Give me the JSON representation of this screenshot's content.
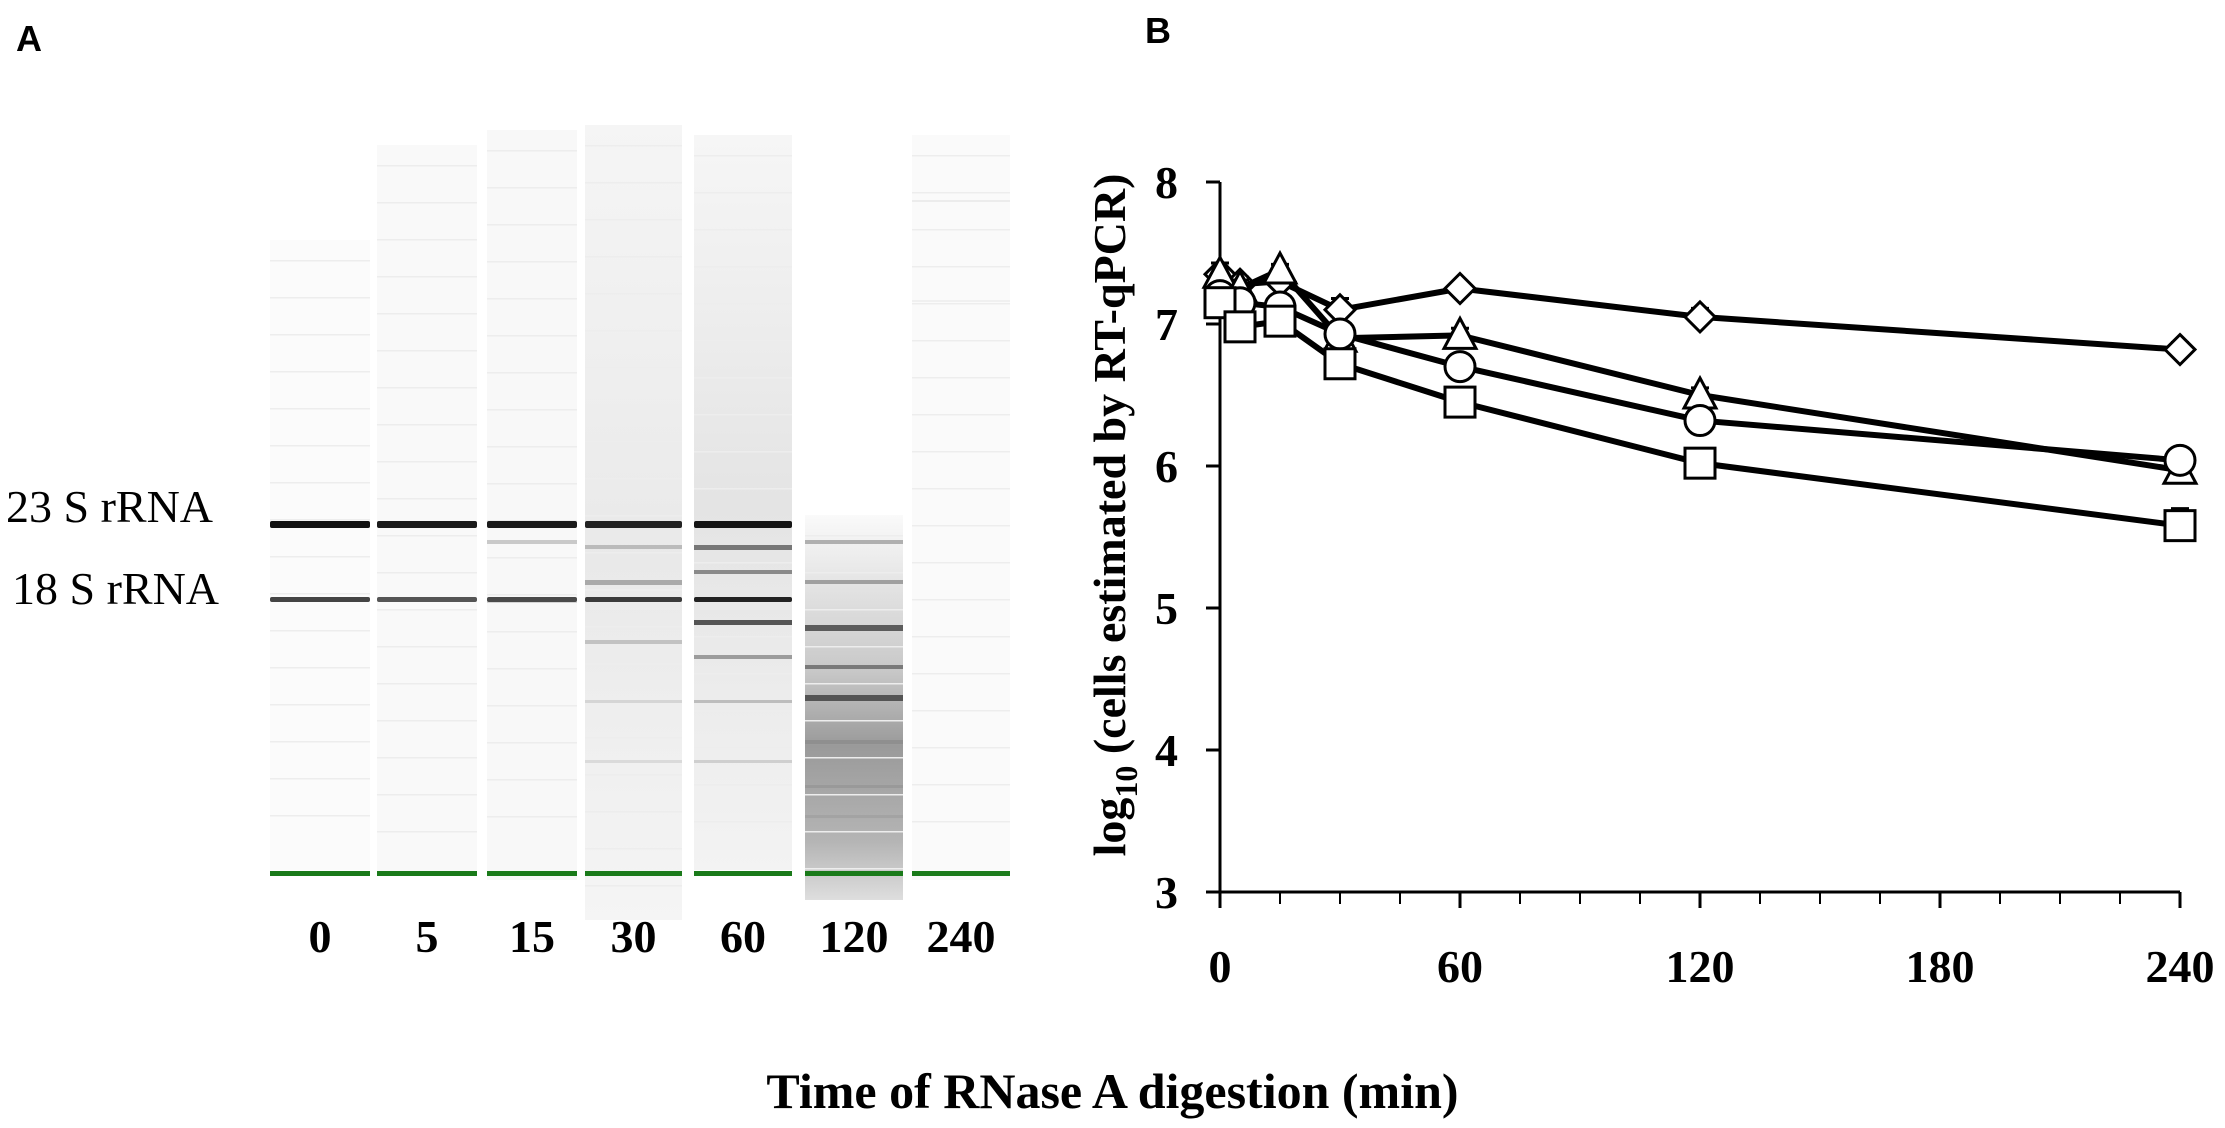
{
  "panel_a": {
    "label": "A",
    "band_labels": {
      "upper": "23 S rRNA",
      "lower": "18 S rRNA"
    },
    "lanes": [
      "0",
      "5",
      "15",
      "30",
      "60",
      "120",
      "240"
    ],
    "marker_color": "#1a7a1a"
  },
  "panel_b": {
    "label": "B"
  },
  "xlabel": "Time of RNase A digestion (min)",
  "chart_data": {
    "type": "line",
    "x": [
      0,
      5,
      15,
      30,
      60,
      120,
      240
    ],
    "xlim": [
      0,
      240
    ],
    "xticks": [
      0,
      60,
      120,
      180,
      240
    ],
    "ylim": [
      3,
      8
    ],
    "yticks": [
      3,
      4,
      5,
      6,
      7,
      8
    ],
    "ylabel_main": "log",
    "ylabel_sub": "10",
    "ylabel_rest": " (cells estimated by RT-qPCR)",
    "xlabel": "Time of RNase A digestion (min)",
    "series": [
      {
        "name": "diamond",
        "marker": "diamond",
        "values": [
          7.35,
          7.28,
          7.3,
          7.1,
          7.25,
          7.05,
          6.82
        ],
        "errors": [
          0.08,
          0.05,
          0.05,
          0.08,
          0.04,
          0.06,
          0.05
        ]
      },
      {
        "name": "triangle",
        "marker": "triangle",
        "values": [
          7.35,
          7.25,
          7.38,
          6.9,
          6.92,
          6.5,
          5.97
        ],
        "errors": [
          0.05,
          0.06,
          0.04,
          0.05,
          0.05,
          0.05,
          0.05
        ]
      },
      {
        "name": "circle",
        "marker": "circle",
        "values": [
          7.2,
          7.15,
          7.12,
          6.93,
          6.7,
          6.32,
          6.04
        ],
        "errors": [
          0.06,
          0.05,
          0.05,
          0.04,
          0.05,
          0.05,
          0.04
        ]
      },
      {
        "name": "square",
        "marker": "square",
        "values": [
          7.15,
          6.98,
          7.02,
          6.72,
          6.45,
          6.02,
          5.58
        ],
        "errors": [
          0.05,
          0.05,
          0.04,
          0.05,
          0.05,
          0.05,
          0.12
        ]
      }
    ]
  }
}
